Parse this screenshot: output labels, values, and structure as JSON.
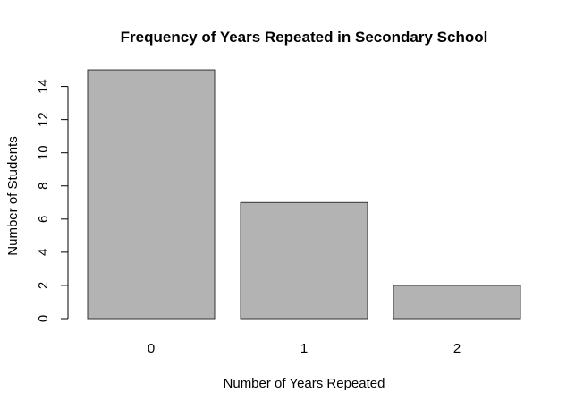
{
  "chart_data": {
    "type": "bar",
    "title": "Frequency of Years Repeated in Secondary School",
    "xlabel": "Number of Years Repeated",
    "ylabel": "Number of Students",
    "categories": [
      "0",
      "1",
      "2"
    ],
    "values": [
      15,
      7,
      2
    ],
    "ylim": [
      0,
      14
    ],
    "yticks": [
      "0",
      "2",
      "4",
      "6",
      "8",
      "10",
      "12",
      "14"
    ],
    "bar_color": "#b3b3b3",
    "bar_border_color": "#333333",
    "grid": false,
    "legend": "none"
  }
}
